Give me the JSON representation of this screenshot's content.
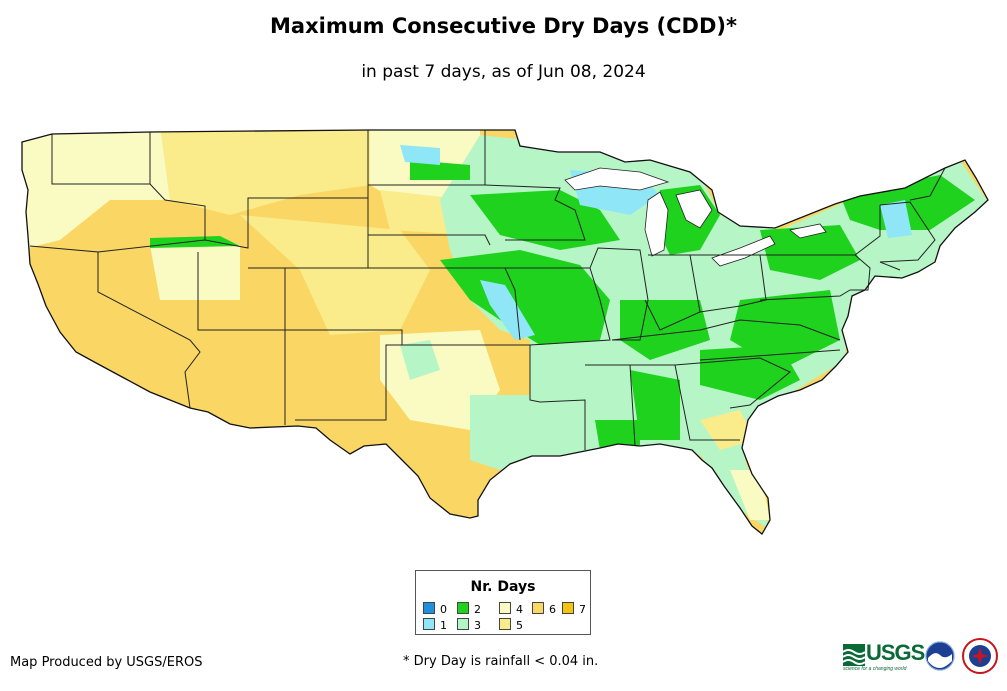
{
  "header": {
    "title": "Maximum Consecutive Dry Days (CDD)*",
    "subtitle": "in past 7 days, as of Jun 08, 2024"
  },
  "legend": {
    "title": "Nr. Days",
    "items": [
      {
        "label": "0",
        "color": "#1e90e0"
      },
      {
        "label": "1",
        "color": "#8fe6f7"
      },
      {
        "label": "2",
        "color": "#1ed21e"
      },
      {
        "label": "3",
        "color": "#b6f5c6"
      },
      {
        "label": "4",
        "color": "#fafac3"
      },
      {
        "label": "5",
        "color": "#faec8a"
      },
      {
        "label": "6",
        "color": "#fad764"
      },
      {
        "label": "7",
        "color": "#f5c310"
      }
    ]
  },
  "footer": {
    "credit": "Map Produced by USGS/EROS",
    "footnote": "* Dry Day is rainfall < 0.04 in.",
    "usgs_logo_text": "USGS",
    "usgs_tagline": "science for a changing world"
  },
  "logos": [
    "usgs-logo",
    "noaa-logo",
    "nws-logo"
  ]
}
